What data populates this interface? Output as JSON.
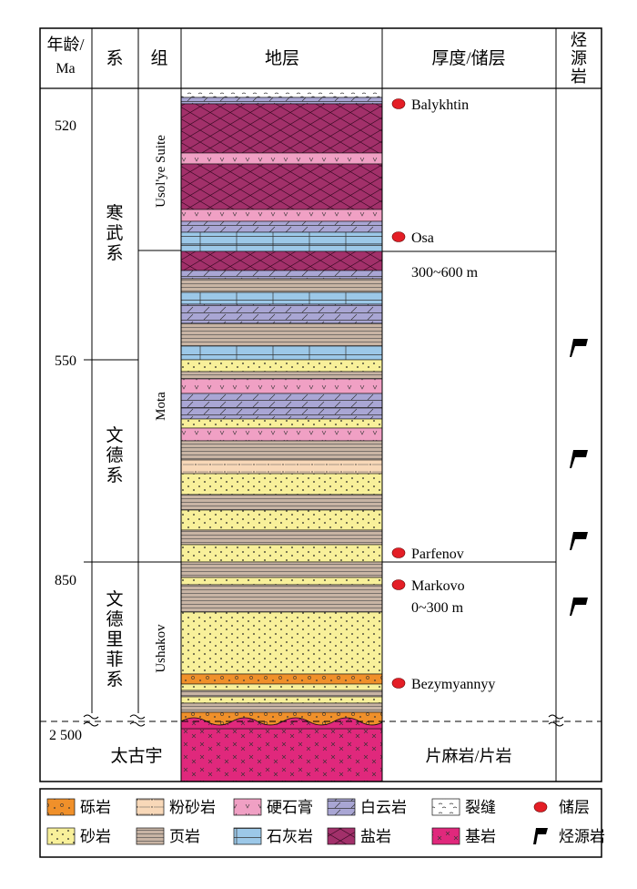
{
  "header": {
    "age_line1": "年龄/",
    "age_line2": "Ma",
    "system": "系",
    "group": "组",
    "strata": "地层",
    "thickness": "厚度/储层",
    "source_rock": [
      "烃",
      "源",
      "岩"
    ]
  },
  "ages": [
    "520",
    "550",
    "850",
    "2 500"
  ],
  "systems": {
    "cambrian": [
      "寒",
      "武",
      "系"
    ],
    "vendian": [
      "文",
      "德",
      "系"
    ],
    "vendian_riphean": [
      "文",
      "德",
      "里",
      "菲",
      "系"
    ],
    "archean": "太古宇"
  },
  "groups": [
    "Usol'ye Suite",
    "Mota",
    "Ushakov"
  ],
  "reservoirs": [
    "Balykhtin",
    "Osa",
    "Parfenov",
    "Markovo",
    "Bezymyannyy"
  ],
  "thicknesses": [
    "300~600 m",
    "0~300 m"
  ],
  "basement_label": "片麻岩/片岩",
  "source_rock_count": 4,
  "legend": [
    {
      "key": "gravel",
      "label": "砾岩"
    },
    {
      "key": "siltstone",
      "label": "粉砂岩"
    },
    {
      "key": "anhydrite",
      "label": "硬石膏"
    },
    {
      "key": "dolomite",
      "label": "白云岩"
    },
    {
      "key": "fracture",
      "label": "裂缝"
    },
    {
      "key": "reservoir",
      "label": "储层"
    },
    {
      "key": "sandstone",
      "label": "砂岩"
    },
    {
      "key": "shale",
      "label": "页岩"
    },
    {
      "key": "limestone",
      "label": "石灰岩"
    },
    {
      "key": "salt",
      "label": "盐岩"
    },
    {
      "key": "basement",
      "label": "基岩"
    },
    {
      "key": "source",
      "label": "烃源岩"
    }
  ],
  "colors": {
    "salt": "#a2306a",
    "dolomite": "#a9a6d4",
    "anhydrite": "#f0a0c4",
    "sandstone": "#f8f09a",
    "shale": "#c8b4a4",
    "limestone": "#9cc8e8",
    "gravel": "#f0902a",
    "siltstone": "#f8d8b8",
    "basement": "#e0287c",
    "reservoir": "#e41e26"
  }
}
